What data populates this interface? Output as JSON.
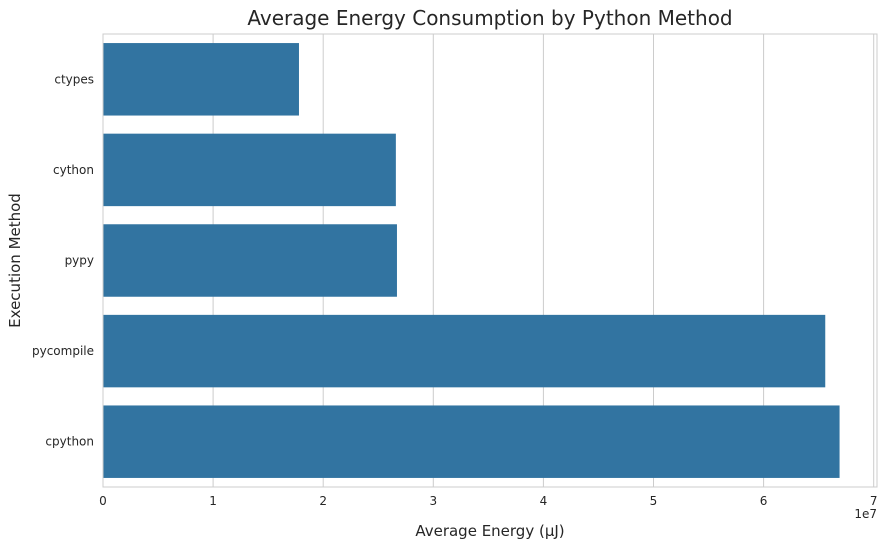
{
  "chart_data": {
    "type": "bar",
    "orientation": "horizontal",
    "title": "Average Energy Consumption by Python Method",
    "xlabel": "Average Energy (µJ)",
    "ylabel": "Execution Method",
    "x_offset_label": "1e7",
    "categories": [
      "ctypes",
      "cython",
      "pypy",
      "pycompile",
      "cpython"
    ],
    "values": [
      17800000,
      26600000,
      26700000,
      65600000,
      66900000
    ],
    "xlim": [
      0,
      70300000
    ],
    "x_ticks": [
      0,
      10000000,
      20000000,
      30000000,
      40000000,
      50000000,
      60000000,
      70000000
    ],
    "x_tick_labels": [
      "0",
      "1",
      "2",
      "3",
      "4",
      "5",
      "6",
      "7"
    ],
    "grid": "vertical",
    "bar_color": "#3274a1",
    "style": "seaborn-whitegrid"
  }
}
